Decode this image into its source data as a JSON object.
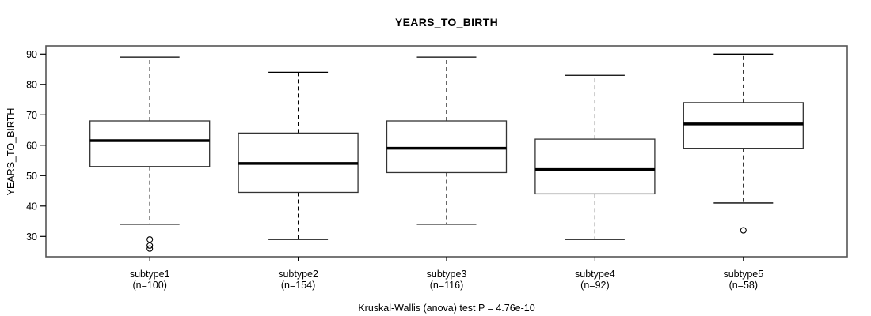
{
  "figure": {
    "background_color": "#ffffff",
    "stroke_color": "#000000",
    "box_fill_color": "#ffffff",
    "frame_color": "#555555"
  },
  "chart_data": {
    "type": "boxplot",
    "title": "YEARS_TO_BIRTH",
    "ylabel": "YEARS_TO_BIRTH",
    "xlabel": "",
    "footnote": "Kruskal-Wallis (anova) test P = 4.76e-10",
    "ylim": [
      25,
      92
    ],
    "yticks": [
      30,
      40,
      50,
      60,
      70,
      80,
      90
    ],
    "grid": false,
    "legend": "none",
    "groups": [
      {
        "label": "subtype1",
        "n_label": "(n=100)",
        "n": 100,
        "whisker_low": 34,
        "q1": 53,
        "median": 61.5,
        "q3": 68,
        "whisker_high": 89,
        "outliers": [
          29,
          27,
          26
        ]
      },
      {
        "label": "subtype2",
        "n_label": "(n=154)",
        "n": 154,
        "whisker_low": 29,
        "q1": 44.5,
        "median": 54,
        "q3": 64,
        "whisker_high": 84,
        "outliers": []
      },
      {
        "label": "subtype3",
        "n_label": "(n=116)",
        "n": 116,
        "whisker_low": 34,
        "q1": 51,
        "median": 59,
        "q3": 68,
        "whisker_high": 89,
        "outliers": []
      },
      {
        "label": "subtype4",
        "n_label": "(n=92)",
        "n": 92,
        "whisker_low": 29,
        "q1": 44,
        "median": 52,
        "q3": 62,
        "whisker_high": 83,
        "outliers": []
      },
      {
        "label": "subtype5",
        "n_label": "(n=58)",
        "n": 58,
        "whisker_low": 41,
        "q1": 59,
        "median": 67,
        "q3": 74,
        "whisker_high": 90,
        "outliers": [
          32
        ]
      }
    ]
  }
}
